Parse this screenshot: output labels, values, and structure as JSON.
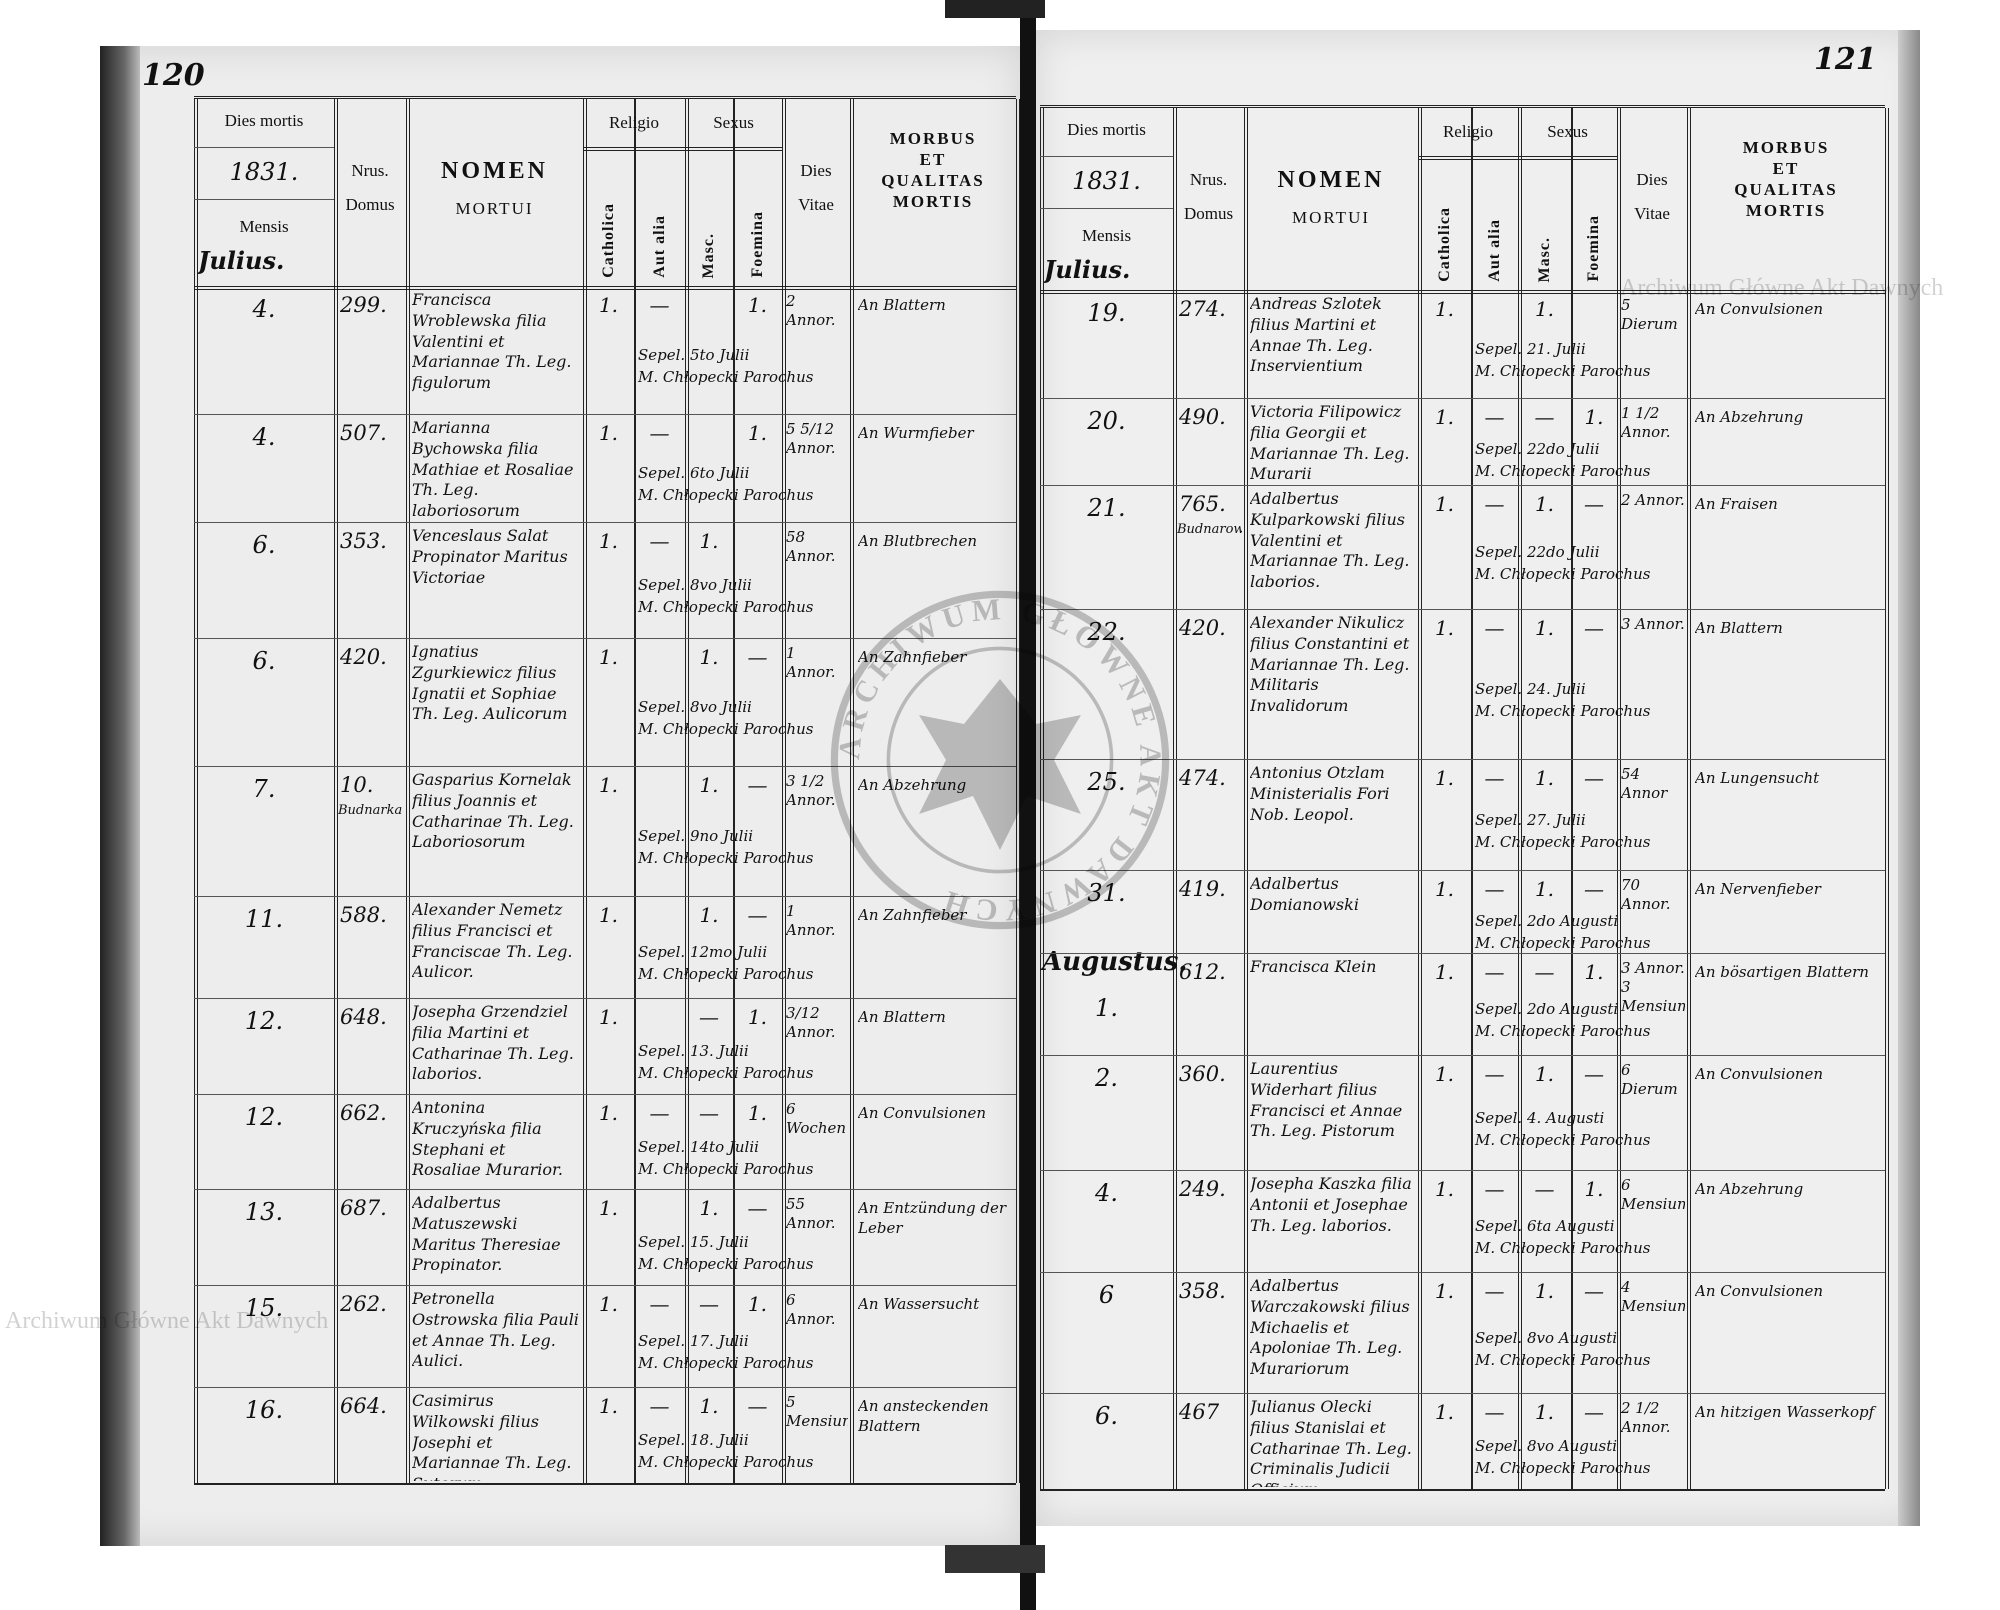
{
  "document": {
    "left_folio": "120",
    "right_folio": "121",
    "watermark_text": "Archiwum Główne Akt Dawnych",
    "stamp_text": "ARCHIWUM GŁÓWNE AKT DAWNYCH"
  },
  "headers": {
    "dies_mortis": "Dies mortis",
    "mensis": "Mensis",
    "nrus": "Nrus.",
    "domus": "Domus",
    "nomen": "NOMEN",
    "mortui": "MORTUI",
    "religio": "Religio",
    "catholica": "Catholica",
    "aut_alia": "Aut alia",
    "sexus": "Sexus",
    "masc": "Masc.",
    "foemina": "Foemina",
    "dies": "Dies",
    "vitae": "Vitae",
    "morbus": "MORBUS",
    "et": "ET",
    "qualitas": "QUALITAS",
    "mortis": "MORTIS"
  },
  "pages": [
    {
      "year": "1831.",
      "month": "Julius.",
      "rows": [
        {
          "day": "4.",
          "domus": "299.",
          "domus_note": "",
          "name": "Francisca Wroblewska filia Valentini et Mariannae Th. Leg. figulorum",
          "catholica": "1.",
          "aut_alia": "—",
          "masc": "",
          "foemina": "1.",
          "vitae": "2 Annor.",
          "morbus": "An Blattern",
          "burial_1": "Sepel. 5to Julii",
          "burial_2": "M. Chłopecki Parochus"
        },
        {
          "day": "4.",
          "domus": "507.",
          "domus_note": "",
          "name": "Marianna Bychowska filia Mathiae et Rosaliae Th. Leg. laboriosorum",
          "catholica": "1.",
          "aut_alia": "—",
          "masc": "",
          "foemina": "1.",
          "vitae": "5 5/12 Annor.",
          "morbus": "An Wurmfieber",
          "burial_1": "Sepel. 6to Julii",
          "burial_2": "M. Chłopecki Parochus"
        },
        {
          "day": "6.",
          "domus": "353.",
          "domus_note": "",
          "name": "Venceslaus Salat Propinator Maritus Victoriae",
          "catholica": "1.",
          "aut_alia": "—",
          "masc": "1.",
          "foemina": "",
          "vitae": "58 Annor.",
          "morbus": "An Blutbrechen",
          "burial_1": "Sepel. 8vo Julii",
          "burial_2": "M. Chłopecki Parochus"
        },
        {
          "day": "6.",
          "domus": "420.",
          "domus_note": "",
          "name": "Ignatius Zgurkiewicz filius Ignatii et Sophiae Th. Leg. Aulicorum",
          "catholica": "1.",
          "aut_alia": "",
          "masc": "1.",
          "foemina": "—",
          "vitae": "1 Annor.",
          "morbus": "An Zahnfieber",
          "burial_1": "Sepel. 8vo Julii",
          "burial_2": "M. Chłopecki Parochus"
        },
        {
          "day": "7.",
          "domus": "10.",
          "domus_note": "Budnarka",
          "name": "Gasparius Kornelak filius Joannis et Catharinae Th. Leg. Laboriosorum",
          "catholica": "1.",
          "aut_alia": "",
          "masc": "1.",
          "foemina": "—",
          "vitae": "3 1/2 Annor.",
          "morbus": "An Abzehrung",
          "burial_1": "Sepel. 9no Julii",
          "burial_2": "M. Chłopecki Parochus"
        },
        {
          "day": "11.",
          "domus": "588.",
          "domus_note": "",
          "name": "Alexander Nemetz filius Francisci et Franciscae Th. Leg. Aulicor.",
          "catholica": "1.",
          "aut_alia": "",
          "masc": "1.",
          "foemina": "—",
          "vitae": "1 Annor.",
          "morbus": "An Zahnfieber",
          "burial_1": "Sepel. 12mo Julii",
          "burial_2": "M. Chłopecki Parochus"
        },
        {
          "day": "12.",
          "domus": "648.",
          "domus_note": "",
          "name": "Josepha Grzendziel filia Martini et Catharinae Th. Leg. laborios.",
          "catholica": "1.",
          "aut_alia": "",
          "masc": "—",
          "foemina": "1.",
          "vitae": "3/12 Annor.",
          "morbus": "An Blattern",
          "burial_1": "Sepel. 13. Julii",
          "burial_2": "M. Chłopecki Parochus"
        },
        {
          "day": "12.",
          "domus": "662.",
          "domus_note": "",
          "name": "Antonina Kruczyńska filia Stephani et Rosaliae Murarior.",
          "catholica": "1.",
          "aut_alia": "—",
          "masc": "—",
          "foemina": "1.",
          "vitae": "6 Wochen",
          "morbus": "An Convulsionen",
          "burial_1": "Sepel. 14to Julii",
          "burial_2": "M. Chłopecki Parochus"
        },
        {
          "day": "13.",
          "domus": "687.",
          "domus_note": "",
          "name": "Adalbertus Matuszewski Maritus Theresiae Propinator.",
          "catholica": "1.",
          "aut_alia": "",
          "masc": "1.",
          "foemina": "—",
          "vitae": "55 Annor.",
          "morbus": "An Entzündung der Leber",
          "burial_1": "Sepel. 15. Julii",
          "burial_2": "M. Chłopecki Parochus"
        },
        {
          "day": "15.",
          "domus": "262.",
          "domus_note": "",
          "name": "Petronella Ostrowska filia Pauli et Annae Th. Leg. Aulici.",
          "catholica": "1.",
          "aut_alia": "—",
          "masc": "—",
          "foemina": "1.",
          "vitae": "6 Annor.",
          "morbus": "An Wassersucht",
          "burial_1": "Sepel. 17. Julii",
          "burial_2": "M. Chłopecki Parochus"
        },
        {
          "day": "16.",
          "domus": "664.",
          "domus_note": "",
          "name": "Casimirus Wilkowski filius Josephi et Mariannae Th. Leg. Sutorum",
          "catholica": "1.",
          "aut_alia": "—",
          "masc": "1.",
          "foemina": "—",
          "vitae": "5 Mensium",
          "morbus": "An ansteckenden Blattern",
          "burial_1": "Sepel. 18. Julii",
          "burial_2": "M. Chłopecki Parochus"
        }
      ]
    },
    {
      "year": "1831.",
      "month": "Julius.",
      "rows": [
        {
          "day": "19.",
          "domus": "274.",
          "domus_note": "",
          "name": "Andreas Szlotek filius Martini et Annae Th. Leg. Inservientium",
          "catholica": "1.",
          "aut_alia": "",
          "masc": "1.",
          "foemina": "",
          "vitae": "5 Dierum",
          "morbus": "An Convulsionen",
          "burial_1": "Sepel. 21. Julii",
          "burial_2": "M. Chłopecki Parochus"
        },
        {
          "day": "20.",
          "domus": "490.",
          "domus_note": "",
          "name": "Victoria Filipowicz filia Georgii et Mariannae Th. Leg. Murarii",
          "catholica": "1.",
          "aut_alia": "—",
          "masc": "—",
          "foemina": "1.",
          "vitae": "1 1/2 Annor.",
          "morbus": "An Abzehrung",
          "burial_1": "Sepel. 22do Julii",
          "burial_2": "M. Chłopecki Parochus"
        },
        {
          "day": "21.",
          "domus": "765.",
          "domus_note": "Budnarowka",
          "name": "Adalbertus Kulparkowski filius Valentini et Mariannae Th. Leg. laborios.",
          "catholica": "1.",
          "aut_alia": "—",
          "masc": "1.",
          "foemina": "—",
          "vitae": "2 Annor.",
          "morbus": "An Fraisen",
          "burial_1": "Sepel. 22do Julii",
          "burial_2": "M. Chłopecki Parochus"
        },
        {
          "day": "22.",
          "domus": "420.",
          "domus_note": "",
          "name": "Alexander Nikulicz filius Constantini et Mariannae Th. Leg. Militaris Invalidorum",
          "catholica": "1.",
          "aut_alia": "—",
          "masc": "1.",
          "foemina": "—",
          "vitae": "3 Annor.",
          "morbus": "An Blattern",
          "burial_1": "Sepel. 24. Julii",
          "burial_2": "M. Chłopecki Parochus"
        },
        {
          "day": "25.",
          "domus": "474.",
          "domus_note": "",
          "name": "Antonius Otzlam Ministerialis Fori Nob. Leopol.",
          "catholica": "1.",
          "aut_alia": "—",
          "masc": "1.",
          "foemina": "—",
          "vitae": "54 Annor",
          "morbus": "An Lungensucht",
          "burial_1": "Sepel. 27. Julii",
          "burial_2": "M. Chłopecki Parochus"
        },
        {
          "day": "31.",
          "domus": "419.",
          "domus_note": "",
          "name": "Adalbertus Domianowski",
          "catholica": "1.",
          "aut_alia": "—",
          "masc": "1.",
          "foemina": "—",
          "vitae": "70 Annor.",
          "morbus": "An Nervenfieber",
          "burial_1": "Sepel. 2do Augusti",
          "burial_2": "M. Chłopecki Parochus"
        },
        {
          "month_label": "Augustus.",
          "day": "1.",
          "domus": "612.",
          "domus_note": "",
          "name": "Francisca Klein",
          "catholica": "1.",
          "aut_alia": "—",
          "masc": "—",
          "foemina": "1.",
          "vitae": "3 Annor. 3 Mensium",
          "morbus": "An bösartigen Blattern",
          "burial_1": "Sepel. 2do Augusti",
          "burial_2": "M. Chłopecki Parochus"
        },
        {
          "day": "2.",
          "domus": "360.",
          "domus_note": "",
          "name": "Laurentius Widerhart filius Francisci et Annae Th. Leg. Pistorum",
          "catholica": "1.",
          "aut_alia": "—",
          "masc": "1.",
          "foemina": "—",
          "vitae": "6 Dierum",
          "morbus": "An Convulsionen",
          "burial_1": "Sepel. 4. Augusti",
          "burial_2": "M. Chłopecki Parochus"
        },
        {
          "day": "4.",
          "domus": "249.",
          "domus_note": "",
          "name": "Josepha Kaszka filia Antonii et Josephae Th. Leg. laborios.",
          "catholica": "1.",
          "aut_alia": "—",
          "masc": "—",
          "foemina": "1.",
          "vitae": "6 Mensium",
          "morbus": "An Abzehrung",
          "burial_1": "Sepel. 6ta Augusti",
          "burial_2": "M. Chłopecki Parochus"
        },
        {
          "day": "6",
          "domus": "358.",
          "domus_note": "",
          "name": "Adalbertus Warczakowski filius Michaelis et Apoloniae Th. Leg. Murariorum",
          "catholica": "1.",
          "aut_alia": "—",
          "masc": "1.",
          "foemina": "—",
          "vitae": "4 Mensium",
          "morbus": "An Convulsionen",
          "burial_1": "Sepel. 8vo Augusti",
          "burial_2": "M. Chłopecki Parochus"
        },
        {
          "day": "6.",
          "domus": "467",
          "domus_note": "",
          "name": "Julianus Olecki filius Stanislai et Catharinae Th. Leg. Criminalis Judicii Officium",
          "catholica": "1.",
          "aut_alia": "—",
          "masc": "1.",
          "foemina": "—",
          "vitae": "2 1/2 Annor.",
          "morbus": "An hitzigen Wasserkopf",
          "burial_1": "Sepel. 8vo Augusti",
          "burial_2": "M. Chłopecki Parochus"
        }
      ]
    }
  ]
}
